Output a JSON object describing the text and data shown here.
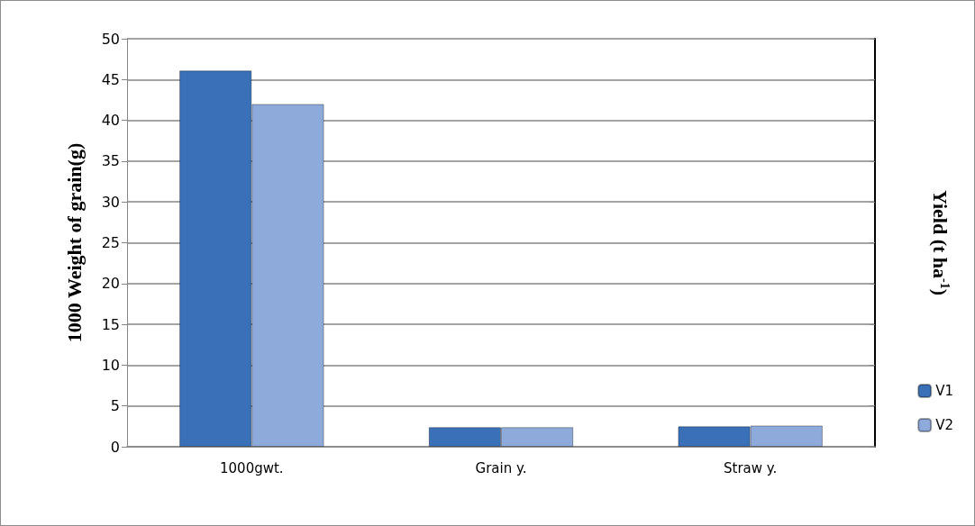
{
  "chart_data": {
    "type": "bar",
    "ylabel": "1000 Weight of grain(g)",
    "y2label": "Yield (t ha$^{-1}$)",
    "categories": [
      "1000gwt.",
      "Grain y.",
      "Straw y."
    ],
    "series": [
      {
        "name": "V1",
        "color": "#3a70b8",
        "values": [
          46.1,
          2.4,
          2.5
        ]
      },
      {
        "name": "V2",
        "color": "#8eaadb",
        "values": [
          42,
          2.4,
          2.6
        ]
      }
    ],
    "ylim": [
      0,
      50
    ],
    "yticks": [
      0,
      5,
      10,
      15,
      20,
      25,
      30,
      35,
      40,
      45,
      50
    ],
    "grid": "y",
    "legend": "right"
  }
}
